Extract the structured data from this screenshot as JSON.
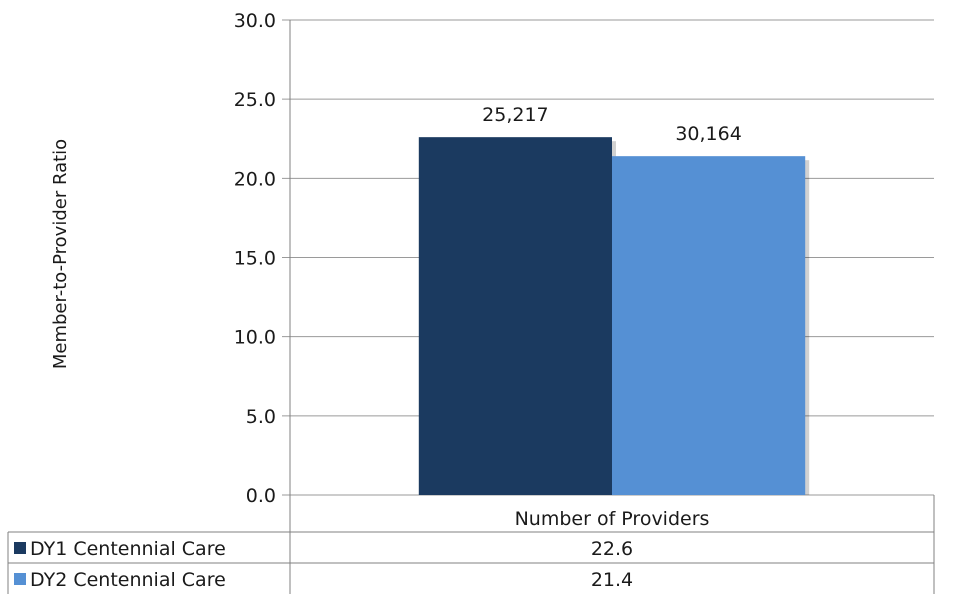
{
  "chart_data": {
    "type": "bar",
    "categories": [
      "Number of Providers"
    ],
    "ylabel": "Member-to-Provider Ratio",
    "ylim": [
      0,
      30
    ],
    "ytick_step": 5,
    "ytick_labels": [
      "0.0",
      "5.0",
      "10.0",
      "15.0",
      "20.0",
      "25.0",
      "30.0"
    ],
    "grid": true,
    "legend": "data-table-below",
    "series": [
      {
        "name": "DY1 Centennial Care",
        "values": [
          22.6
        ],
        "bar_labels": [
          "25,217"
        ],
        "table_values": [
          "22.6"
        ],
        "color": "#1b3a60"
      },
      {
        "name": "DY2 Centennial Care",
        "values": [
          21.4
        ],
        "bar_labels": [
          "30,164"
        ],
        "table_values": [
          "21.4"
        ],
        "color": "#5590d4"
      }
    ],
    "colors": {
      "gridline": "#9a9a9a",
      "axis": "#808080"
    }
  }
}
